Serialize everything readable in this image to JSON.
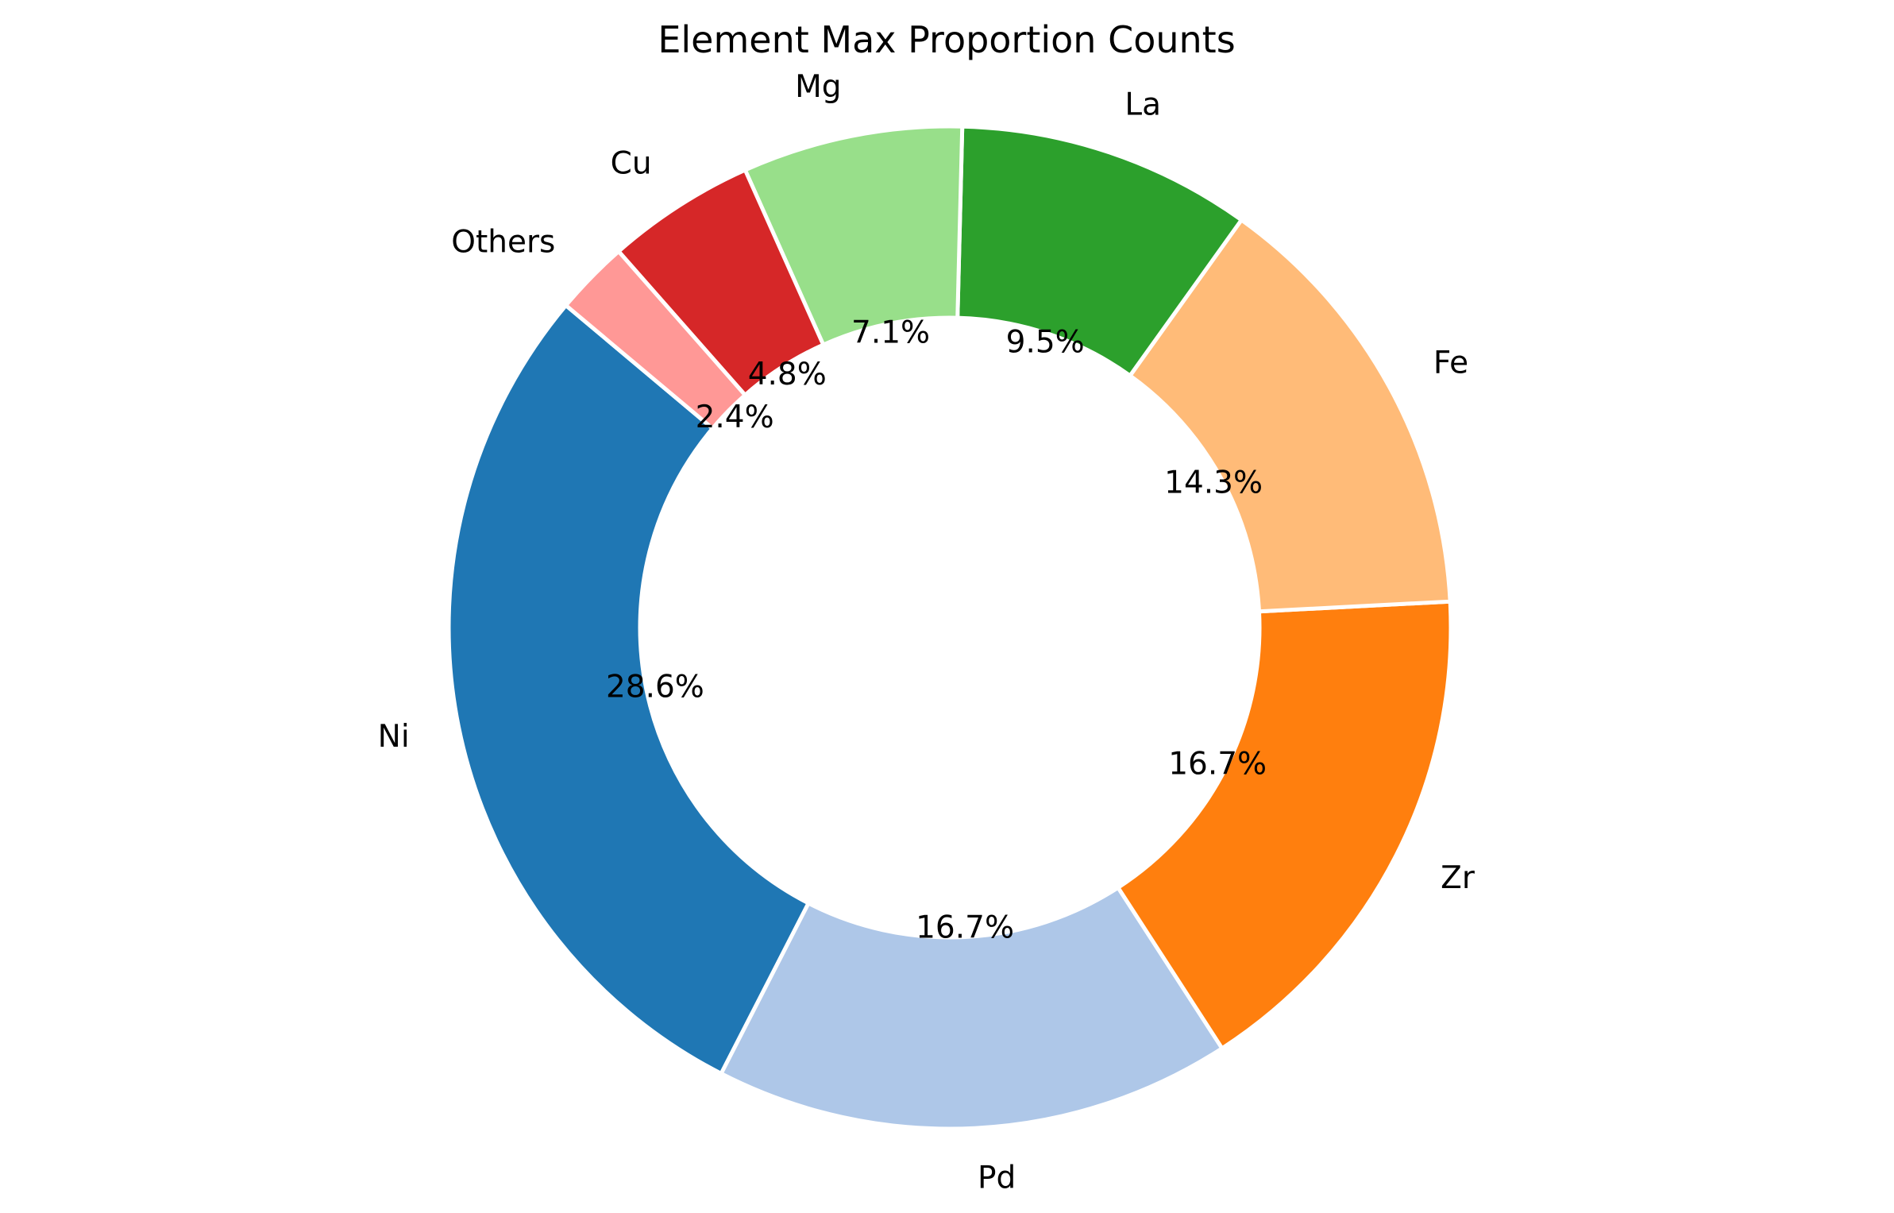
{
  "chart_data": {
    "type": "pie",
    "variant": "donut",
    "title": "Element Max Proportion Counts",
    "categories": [
      "Ni",
      "Pd",
      "Zr",
      "Fe",
      "La",
      "Mg",
      "Cu",
      "Others"
    ],
    "values": [
      28.6,
      16.7,
      16.7,
      14.3,
      9.5,
      7.1,
      4.8,
      2.4
    ],
    "value_labels": [
      "28.6%",
      "16.7%",
      "16.7%",
      "14.3%",
      "9.5%",
      "7.1%",
      "4.8%",
      "2.4%"
    ],
    "colors": [
      "#1f77b4",
      "#aec7e8",
      "#ff7f0e",
      "#ffbb78",
      "#2ca02c",
      "#98df8a",
      "#d62728",
      "#ff9896"
    ],
    "start_angle_deg": 140,
    "direction": "counterclockwise",
    "legend": "none"
  }
}
